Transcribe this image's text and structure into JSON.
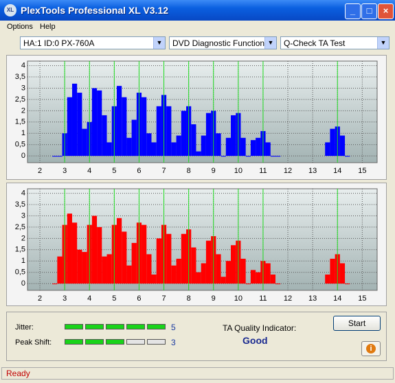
{
  "window": {
    "title": "PlexTools Professional XL V3.12",
    "icon": "XL"
  },
  "menu": [
    "Options",
    "Help"
  ],
  "selectors": [
    "HA:1 ID:0  PX-760A",
    "DVD Diagnostic Functions",
    "Q-Check TA Test"
  ],
  "chart_data": [
    {
      "type": "bar",
      "color": "#0000ff",
      "x": [
        2.6,
        2.8,
        3.0,
        3.2,
        3.4,
        3.6,
        3.8,
        4.0,
        4.2,
        4.4,
        4.6,
        4.8,
        5.0,
        5.2,
        5.4,
        5.6,
        5.8,
        6.0,
        6.2,
        6.4,
        6.6,
        6.8,
        7.0,
        7.2,
        7.4,
        7.6,
        7.8,
        8.0,
        8.2,
        8.4,
        8.6,
        8.8,
        9.0,
        9.2,
        9.4,
        9.6,
        9.8,
        10.0,
        10.2,
        10.4,
        10.6,
        10.8,
        11.0,
        11.2,
        11.4,
        11.6,
        13.6,
        13.8,
        14.0,
        14.2,
        14.4
      ],
      "values": [
        0,
        0,
        1.0,
        2.6,
        3.2,
        2.8,
        1.2,
        1.5,
        3.0,
        2.9,
        1.8,
        0.6,
        2.2,
        3.1,
        2.6,
        0.8,
        1.6,
        2.8,
        2.6,
        1.0,
        0.6,
        2.2,
        2.7,
        2.2,
        0.6,
        0.9,
        2.0,
        2.2,
        1.4,
        0.2,
        0.9,
        1.9,
        2.0,
        1.0,
        0,
        0.8,
        1.8,
        1.9,
        0.8,
        0,
        0.7,
        0.8,
        1.1,
        0.6,
        0,
        0,
        0.6,
        1.2,
        1.3,
        0.9,
        0
      ],
      "markers": [
        3,
        4,
        5,
        6,
        7,
        8,
        9,
        10,
        11,
        14
      ],
      "marker_color": "#22dd22",
      "xlim": [
        1.5,
        15.6
      ],
      "ylim": [
        -0.3,
        4.2
      ],
      "xticks": [
        2,
        3,
        4,
        5,
        6,
        7,
        8,
        9,
        10,
        11,
        12,
        13,
        14,
        15
      ],
      "yticks": [
        0,
        {
          "value": 0.5,
          "label": "0,5"
        },
        1,
        {
          "value": 1.5,
          "label": "1,5"
        },
        2,
        {
          "value": 2.5,
          "label": "2,5"
        },
        3,
        {
          "value": 3.5,
          "label": "3,5"
        },
        4
      ],
      "grid": true
    },
    {
      "type": "bar",
      "color": "#ff0000",
      "x": [
        2.6,
        2.8,
        3.0,
        3.2,
        3.4,
        3.6,
        3.8,
        4.0,
        4.2,
        4.4,
        4.6,
        4.8,
        5.0,
        5.2,
        5.4,
        5.6,
        5.8,
        6.0,
        6.2,
        6.4,
        6.6,
        6.8,
        7.0,
        7.2,
        7.4,
        7.6,
        7.8,
        8.0,
        8.2,
        8.4,
        8.6,
        8.8,
        9.0,
        9.2,
        9.4,
        9.6,
        9.8,
        10.0,
        10.2,
        10.4,
        10.6,
        10.8,
        11.0,
        11.2,
        11.4,
        11.6,
        13.6,
        13.8,
        14.0,
        14.2,
        14.4
      ],
      "values": [
        0,
        1.2,
        2.6,
        3.1,
        2.7,
        1.5,
        1.4,
        2.6,
        3.0,
        2.5,
        1.2,
        1.3,
        2.6,
        2.9,
        2.3,
        0.8,
        1.8,
        2.7,
        2.6,
        1.3,
        0.4,
        2.0,
        2.6,
        2.2,
        0.8,
        1.1,
        2.2,
        2.4,
        1.6,
        0.5,
        0.9,
        1.9,
        2.1,
        1.3,
        0.3,
        1.0,
        1.7,
        1.9,
        1.1,
        0,
        0.6,
        0.5,
        1.0,
        0.9,
        0.4,
        0,
        0.4,
        1.1,
        1.3,
        0.9,
        0
      ],
      "markers": [
        3,
        4,
        5,
        6,
        7,
        8,
        9,
        10,
        11,
        14
      ],
      "marker_color": "#22dd22",
      "xlim": [
        1.5,
        15.6
      ],
      "ylim": [
        -0.3,
        4.2
      ],
      "xticks": [
        2,
        3,
        4,
        5,
        6,
        7,
        8,
        9,
        10,
        11,
        12,
        13,
        14,
        15
      ],
      "yticks": [
        0,
        {
          "value": 0.5,
          "label": "0,5"
        },
        1,
        {
          "value": 1.5,
          "label": "1,5"
        },
        2,
        {
          "value": 2.5,
          "label": "2,5"
        },
        3,
        {
          "value": 3.5,
          "label": "3,5"
        },
        4
      ],
      "grid": true
    }
  ],
  "results": {
    "jitter": {
      "label": "Jitter:",
      "value": 5
    },
    "peak_shift": {
      "label": "Peak Shift:",
      "value": 3
    },
    "ta_quality": {
      "label": "TA Quality Indicator:",
      "value": "Good"
    },
    "start": "Start"
  },
  "status": "Ready"
}
